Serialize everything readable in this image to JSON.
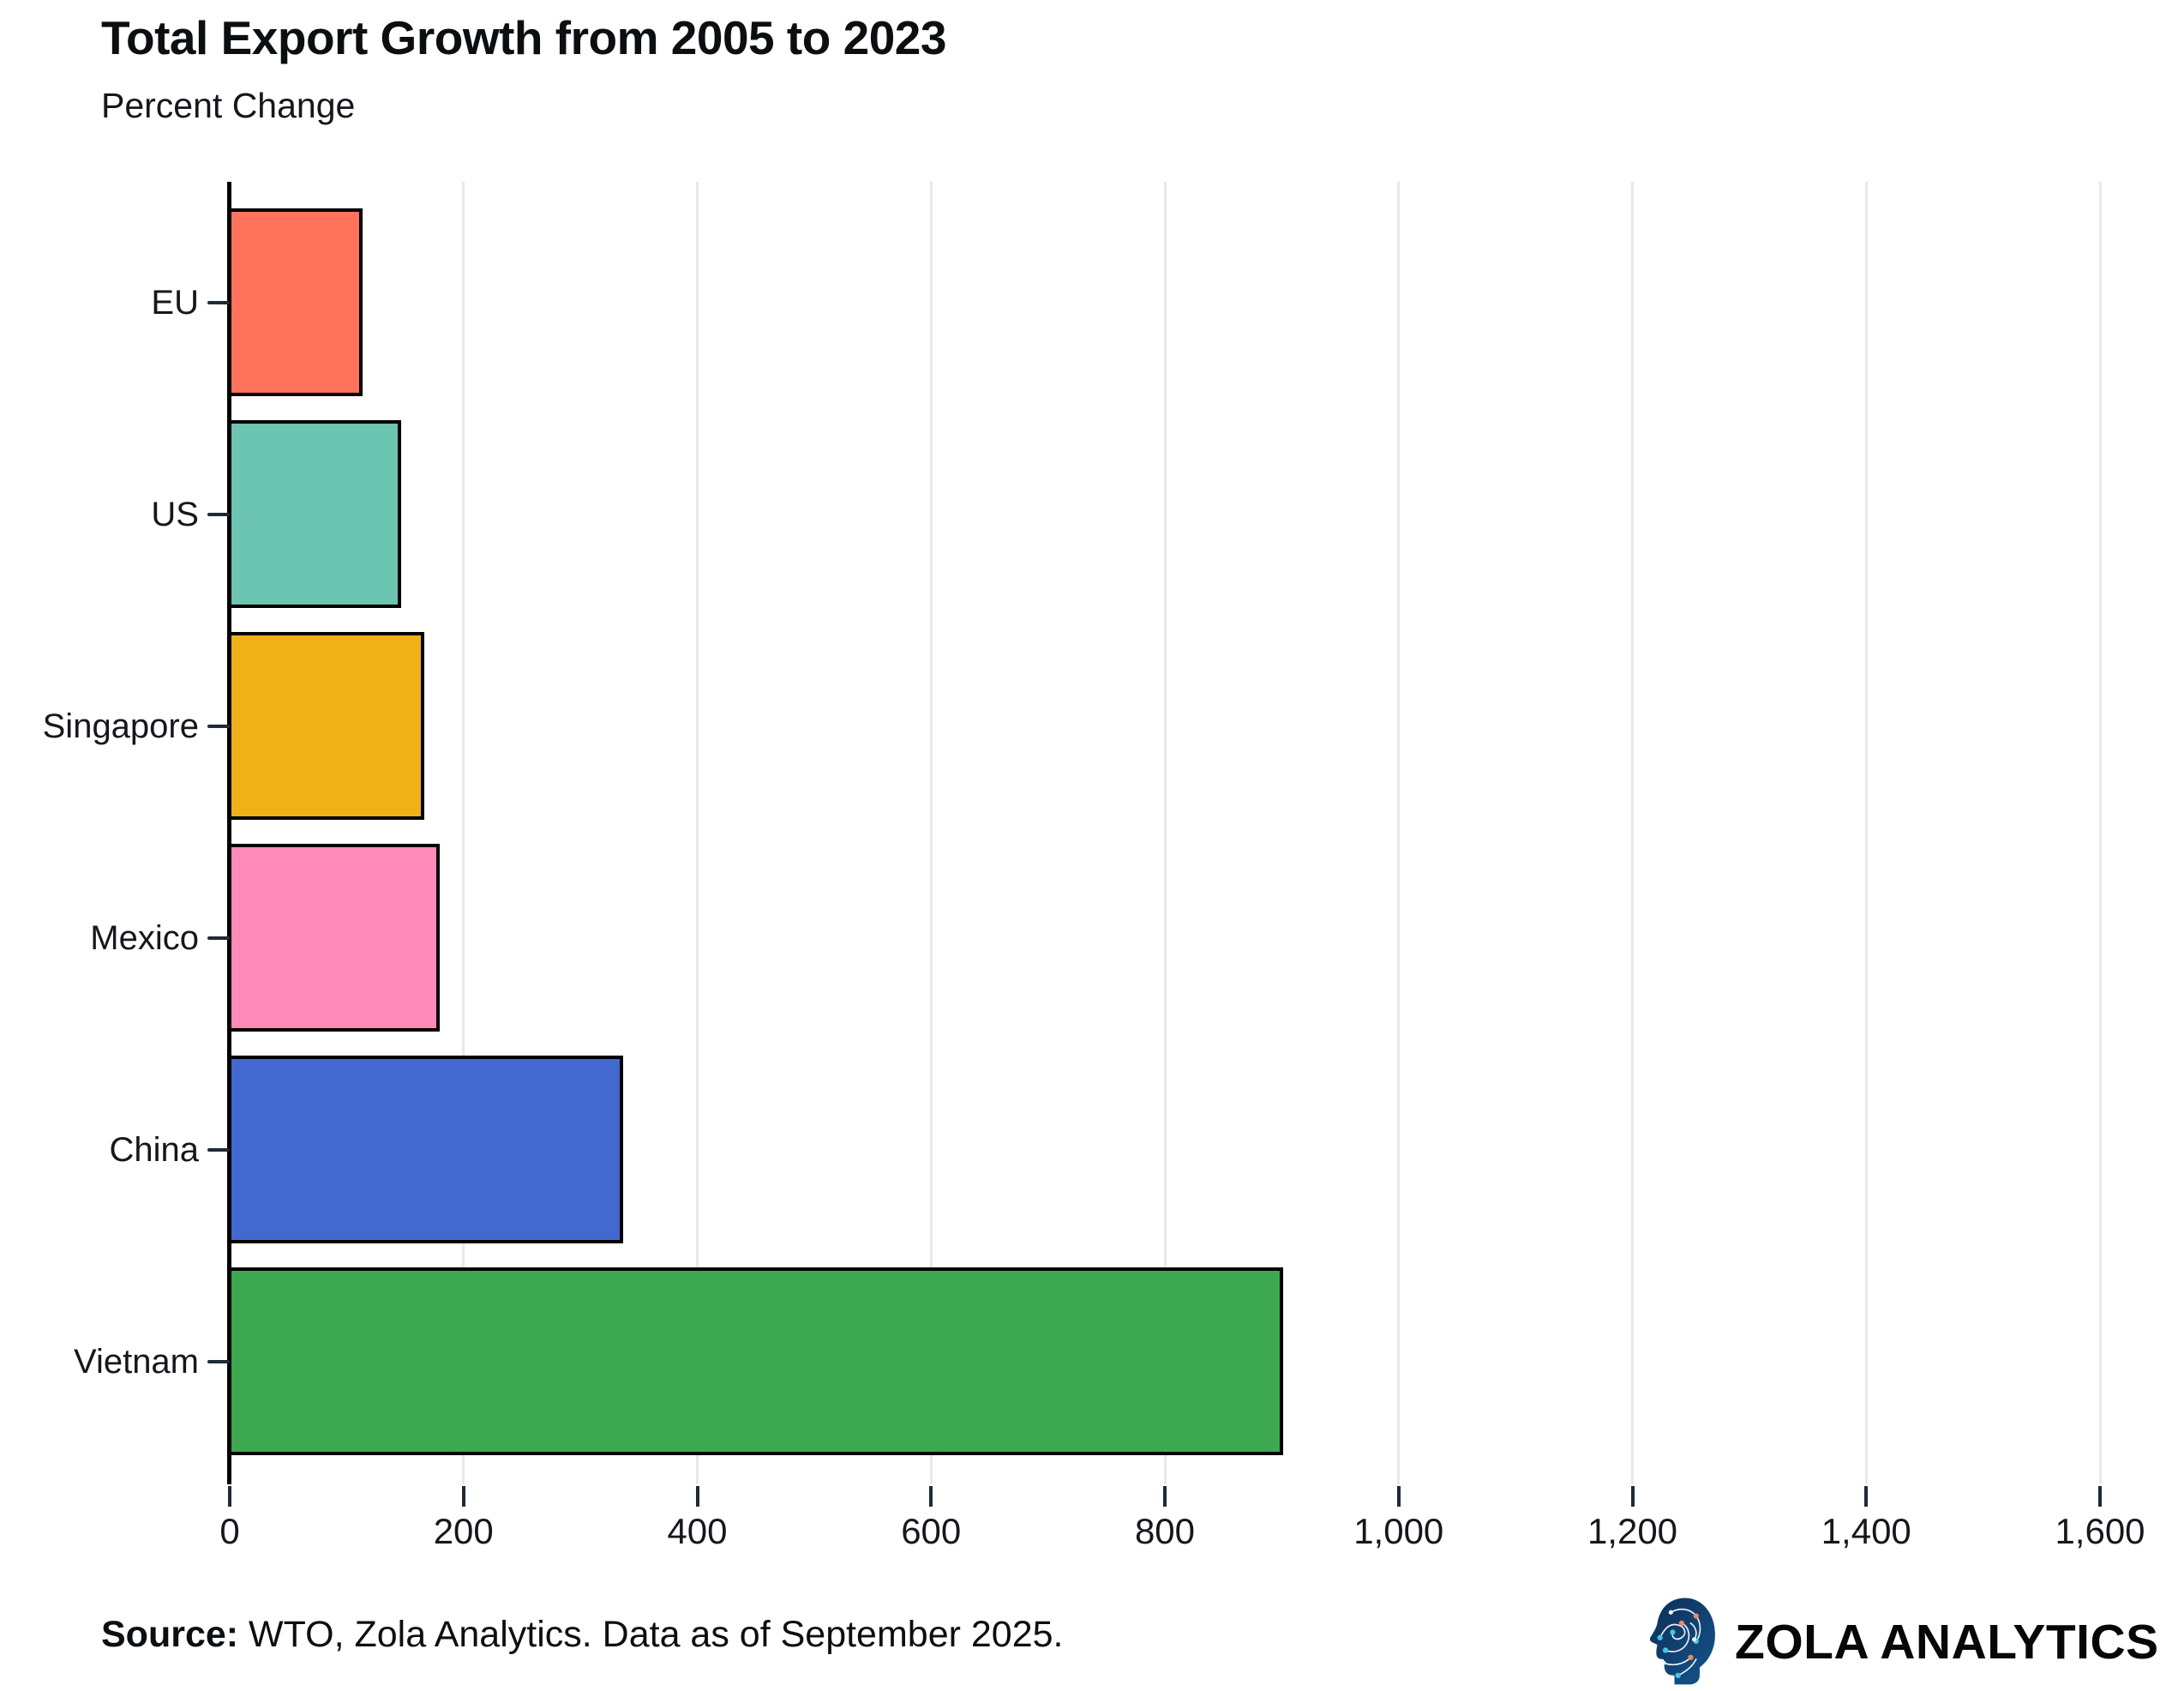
{
  "header": {
    "title": "Total Export Growth from 2005 to 2023",
    "subtitle": "Percent Change"
  },
  "chart_data": {
    "type": "bar",
    "orientation": "horizontal",
    "title": "Total Export Growth from 2005 to 2023",
    "subtitle": "Percent Change",
    "categories": [
      "EU",
      "US",
      "Singapore",
      "Mexico",
      "China",
      "Vietnam"
    ],
    "values": [
      112,
      145,
      165,
      178,
      335,
      900
    ],
    "bar_colors": [
      "#ff725c",
      "#6cc5b0",
      "#efb118",
      "#ff8ab7",
      "#4269d0",
      "#3ca951"
    ],
    "bar_outline_color": "#000000",
    "xlabel": "",
    "ylabel": "",
    "xlim": [
      0,
      1600
    ],
    "x_ticks": [
      0,
      200,
      400,
      600,
      800,
      1000,
      1200,
      1400,
      1600
    ],
    "x_tick_labels": [
      "0",
      "200",
      "400",
      "600",
      "800",
      "1,000",
      "1,200",
      "1,400",
      "1,600"
    ],
    "grid": "vertical-gridlines-on",
    "legend": "none",
    "gridline_color": "#e8e8e8",
    "axis_line_color": "#000000",
    "tick_color": "#1f2a37"
  },
  "footer": {
    "source_label": "Source:",
    "source_text": " WTO, Zola Analytics. Data as of September 2025."
  },
  "logo": {
    "text": "ZOLA ANALYTICS",
    "icon": "brain-circuit-head-icon",
    "icon_colors": {
      "head_dark": "#0d2d55",
      "head_light": "#14568e",
      "trace": "#e8f0f8",
      "dot_teal": "#3ec9dd",
      "dot_orange": "#e98a5f"
    }
  }
}
